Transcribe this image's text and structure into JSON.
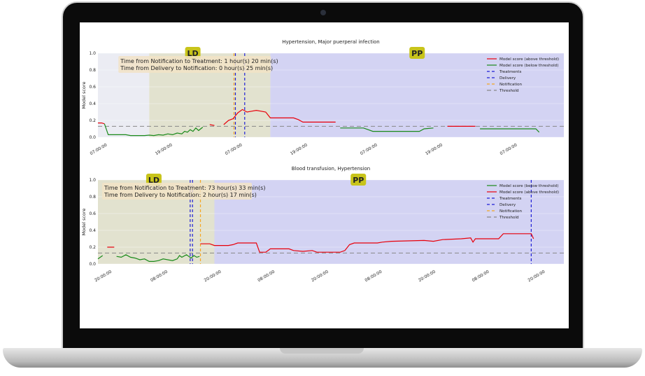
{
  "colors": {
    "above": "#e8000b",
    "below": "#1a8a1a",
    "treatments": "#1f1fd6",
    "delivery": "#1f1fd6",
    "notification": "#f5a623",
    "threshold": "#888888",
    "ld_band": "#e2e2cf",
    "pp_band": "#d3d3f3",
    "pre_band": "#ebecf3",
    "phase_label_bg": "#c8c41a",
    "info_bg": "#f2e3c6"
  },
  "chart_data": [
    {
      "type": "line",
      "title": "Hypertension, Major puerperal infection",
      "ylabel": "Model score",
      "ylim": [
        0,
        1.0
      ],
      "yticks": [
        "0.0",
        "0.2",
        "0.4",
        "0.6",
        "0.8",
        "1.0"
      ],
      "x_range": [
        0,
        100
      ],
      "xticks": [
        {
          "x": 2,
          "label": "07:00:00"
        },
        {
          "x": 16,
          "label": "19:00:00"
        },
        {
          "x": 31,
          "label": "07:00:00"
        },
        {
          "x": 45,
          "label": "19:00:00"
        },
        {
          "x": 60,
          "label": "07:00:00"
        },
        {
          "x": 74,
          "label": "19:00:00"
        },
        {
          "x": 90,
          "label": "07:00:00"
        }
      ],
      "phases": [
        {
          "name": "pre",
          "x0": 0,
          "x1": 11
        },
        {
          "name": "LD",
          "x0": 11,
          "x1": 37,
          "label": "LD"
        },
        {
          "name": "PP",
          "x0": 37,
          "x1": 100,
          "label": "PP"
        }
      ],
      "info_lines": [
        "Time from Notification to Treatment: 1 hour(s) 20 min(s)",
        "Time from Delivery to Notification: 0 hour(s) 25 min(s)"
      ],
      "threshold": 0.13,
      "vlines": [
        {
          "kind": "treatments",
          "x": 29.5
        },
        {
          "kind": "delivery",
          "x": 31.5
        },
        {
          "kind": "notification",
          "x": 29.2
        }
      ],
      "legend": [
        "Model score (above threshold)",
        "Model score (below threshold)",
        "Treatments",
        "Delivery",
        "Notification",
        "Threshold"
      ],
      "legend_kinds": [
        "above",
        "below",
        "treatments",
        "delivery",
        "notification",
        "threshold"
      ],
      "series": [
        {
          "kind": "above",
          "points": [
            [
              0,
              0.17
            ],
            [
              0.8,
              0.17
            ],
            [
              1.4,
              0.16
            ]
          ]
        },
        {
          "kind": "below",
          "points": [
            [
              1.4,
              0.16
            ],
            [
              2.2,
              0.03
            ],
            [
              6,
              0.03
            ],
            [
              7,
              0.02
            ],
            [
              10,
              0.02
            ],
            [
              11,
              0.025
            ],
            [
              12,
              0.02
            ],
            [
              13,
              0.03
            ],
            [
              14,
              0.025
            ],
            [
              15,
              0.04
            ],
            [
              16,
              0.03
            ],
            [
              17,
              0.05
            ],
            [
              18,
              0.04
            ],
            [
              18.6,
              0.07
            ],
            [
              19.2,
              0.06
            ],
            [
              19.8,
              0.09
            ],
            [
              20.4,
              0.07
            ],
            [
              21,
              0.11
            ],
            [
              21.6,
              0.08
            ],
            [
              22.5,
              0.12
            ]
          ]
        },
        {
          "kind": "above",
          "points": [
            [
              24,
              0.15
            ],
            [
              25,
              0.14
            ]
          ]
        },
        {
          "kind": "above",
          "points": [
            [
              27,
              0.15
            ],
            [
              28,
              0.2
            ],
            [
              29,
              0.22
            ],
            [
              30,
              0.29
            ],
            [
              31,
              0.33
            ],
            [
              32,
              0.3
            ],
            [
              33,
              0.31
            ],
            [
              34,
              0.32
            ],
            [
              35,
              0.31
            ],
            [
              36,
              0.3
            ],
            [
              37,
              0.23
            ],
            [
              42,
              0.23
            ],
            [
              43,
              0.21
            ],
            [
              44,
              0.18
            ],
            [
              51,
              0.18
            ]
          ]
        },
        {
          "kind": "below",
          "points": [
            [
              52,
              0.11
            ],
            [
              57,
              0.11
            ],
            [
              58,
              0.09
            ],
            [
              59,
              0.07
            ],
            [
              69,
              0.07
            ],
            [
              70,
              0.1
            ],
            [
              72,
              0.11
            ]
          ]
        },
        {
          "kind": "above",
          "points": [
            [
              75,
              0.13
            ],
            [
              81,
              0.13
            ]
          ]
        },
        {
          "kind": "below",
          "points": [
            [
              82,
              0.1
            ],
            [
              94,
              0.1
            ],
            [
              94.7,
              0.06
            ]
          ]
        }
      ]
    },
    {
      "type": "line",
      "title": "Blood transfusion, Hypertension",
      "ylabel": "Model score",
      "ylim": [
        0,
        1.0
      ],
      "yticks": [
        "0.0",
        "0.2",
        "0.4",
        "0.6",
        "0.8",
        "1.0"
      ],
      "x_range": [
        0,
        100
      ],
      "xticks": [
        {
          "x": 3,
          "label": "20:00:00"
        },
        {
          "x": 15,
          "label": "08:00:00"
        },
        {
          "x": 26.5,
          "label": "20:00:00"
        },
        {
          "x": 38,
          "label": "08:00:00"
        },
        {
          "x": 49.5,
          "label": "20:00:00"
        },
        {
          "x": 61,
          "label": "08:00:00"
        },
        {
          "x": 72.5,
          "label": "20:00:00"
        },
        {
          "x": 84,
          "label": "08:00:00"
        },
        {
          "x": 96,
          "label": "20:00:00"
        }
      ],
      "phases": [
        {
          "name": "LD",
          "x0": 0,
          "x1": 25,
          "label": "LD"
        },
        {
          "name": "PP",
          "x0": 25,
          "x1": 100,
          "label": "PP"
        }
      ],
      "info_lines": [
        "Time from Notification to Treatment: 73 hour(s) 33 min(s)",
        "Time from Delivery to Notification: 2 hour(s) 17 min(s)"
      ],
      "threshold": 0.13,
      "vlines": [
        {
          "kind": "treatments",
          "x": 19.8
        },
        {
          "kind": "delivery",
          "x": 20.3
        },
        {
          "kind": "notification",
          "x": 22.0
        },
        {
          "kind": "treatments",
          "x": 93.0
        }
      ],
      "legend": [
        "Model score (below threshold)",
        "Model score (above threshold)",
        "Treatments",
        "Delivery",
        "Notification",
        "Threshold"
      ],
      "legend_kinds": [
        "below",
        "above",
        "treatments",
        "delivery",
        "notification",
        "threshold"
      ],
      "series": [
        {
          "kind": "below",
          "points": [
            [
              0,
              0.06
            ],
            [
              1,
              0.1
            ]
          ]
        },
        {
          "kind": "above",
          "points": [
            [
              2,
              0.2
            ],
            [
              3.5,
              0.2
            ]
          ]
        },
        {
          "kind": "below",
          "points": [
            [
              4,
              0.09
            ],
            [
              5,
              0.08
            ],
            [
              6,
              0.11
            ],
            [
              7,
              0.08
            ],
            [
              8,
              0.07
            ],
            [
              9,
              0.05
            ],
            [
              10,
              0.06
            ],
            [
              11,
              0.03
            ],
            [
              12,
              0.03
            ],
            [
              13,
              0.04
            ],
            [
              14,
              0.06
            ],
            [
              16,
              0.04
            ],
            [
              17,
              0.06
            ],
            [
              17.5,
              0.1
            ],
            [
              18,
              0.08
            ],
            [
              19,
              0.11
            ],
            [
              20,
              0.07
            ],
            [
              20.6,
              0.1
            ],
            [
              21.2,
              0.08
            ],
            [
              21.8,
              0.09
            ]
          ]
        },
        {
          "kind": "above",
          "points": [
            [
              22,
              0.24
            ],
            [
              24,
              0.24
            ],
            [
              25,
              0.22
            ],
            [
              28,
              0.22
            ],
            [
              29,
              0.23
            ],
            [
              30,
              0.25
            ],
            [
              34,
              0.25
            ],
            [
              34.7,
              0.14
            ],
            [
              36,
              0.14
            ],
            [
              37,
              0.18
            ],
            [
              41,
              0.18
            ],
            [
              42,
              0.16
            ],
            [
              44,
              0.15
            ],
            [
              46,
              0.16
            ],
            [
              47,
              0.14
            ],
            [
              52,
              0.14
            ],
            [
              53,
              0.16
            ],
            [
              54,
              0.23
            ],
            [
              55,
              0.25
            ],
            [
              60,
              0.25
            ],
            [
              61,
              0.26
            ],
            [
              63,
              0.27
            ],
            [
              70,
              0.28
            ],
            [
              72,
              0.27
            ],
            [
              74,
              0.29
            ],
            [
              78,
              0.3
            ],
            [
              80,
              0.31
            ],
            [
              80.5,
              0.26
            ],
            [
              81,
              0.3
            ],
            [
              86,
              0.3
            ],
            [
              87,
              0.36
            ],
            [
              93,
              0.36
            ],
            [
              93.5,
              0.3
            ]
          ]
        }
      ]
    }
  ]
}
